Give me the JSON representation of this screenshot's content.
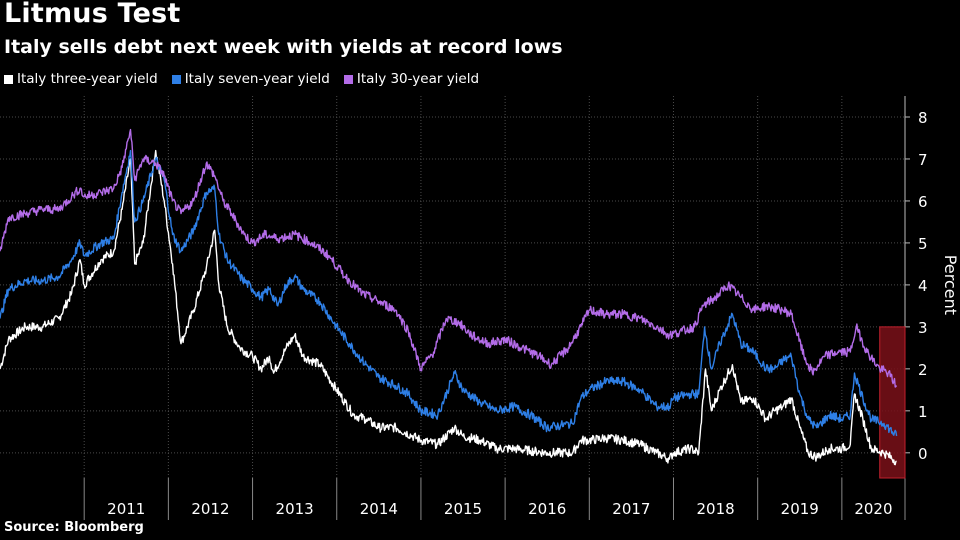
{
  "chart_data": {
    "type": "line",
    "title": "Litmus Test",
    "subtitle": "Italy sells debt next week with yields at record lows",
    "ylabel": "Percent",
    "ylim": [
      -0.6,
      8.5
    ],
    "yticks": [
      0,
      1,
      2,
      3,
      4,
      5,
      6,
      7,
      8
    ],
    "xlim": [
      2010.0,
      2020.75
    ],
    "xticks": [
      "2011",
      "2012",
      "2013",
      "2014",
      "2015",
      "2016",
      "2017",
      "2018",
      "2019",
      "2020"
    ],
    "grid": true,
    "legend_position": "top-left",
    "highlight": {
      "x0": 2020.45,
      "x1": 2020.75,
      "y0": -0.6,
      "y1": 3.0,
      "color": "#7a1019"
    },
    "series": [
      {
        "name": "Italy three-year yield",
        "color": "#ffffff",
        "points": [
          [
            2010.0,
            2.0
          ],
          [
            2010.1,
            2.7
          ],
          [
            2010.3,
            3.0
          ],
          [
            2010.5,
            3.0
          ],
          [
            2010.7,
            3.2
          ],
          [
            2010.85,
            3.8
          ],
          [
            2010.95,
            4.6
          ],
          [
            2011.0,
            4.0
          ],
          [
            2011.2,
            4.6
          ],
          [
            2011.35,
            4.8
          ],
          [
            2011.45,
            5.8
          ],
          [
            2011.55,
            7.0
          ],
          [
            2011.6,
            4.5
          ],
          [
            2011.7,
            5.0
          ],
          [
            2011.85,
            7.2
          ],
          [
            2011.95,
            6.0
          ],
          [
            2012.05,
            4.5
          ],
          [
            2012.15,
            2.6
          ],
          [
            2012.3,
            3.4
          ],
          [
            2012.45,
            4.4
          ],
          [
            2012.55,
            5.3
          ],
          [
            2012.6,
            4.0
          ],
          [
            2012.7,
            3.0
          ],
          [
            2012.85,
            2.5
          ],
          [
            2013.0,
            2.3
          ],
          [
            2013.1,
            2.0
          ],
          [
            2013.2,
            2.3
          ],
          [
            2013.25,
            1.9
          ],
          [
            2013.4,
            2.5
          ],
          [
            2013.5,
            2.8
          ],
          [
            2013.6,
            2.3
          ],
          [
            2013.8,
            2.1
          ],
          [
            2014.0,
            1.5
          ],
          [
            2014.1,
            1.2
          ],
          [
            2014.2,
            0.9
          ],
          [
            2014.35,
            0.8
          ],
          [
            2014.5,
            0.6
          ],
          [
            2014.7,
            0.6
          ],
          [
            2014.9,
            0.4
          ],
          [
            2015.0,
            0.3
          ],
          [
            2015.2,
            0.2
          ],
          [
            2015.4,
            0.6
          ],
          [
            2015.5,
            0.4
          ],
          [
            2015.7,
            0.3
          ],
          [
            2015.9,
            0.1
          ],
          [
            2016.1,
            0.1
          ],
          [
            2016.3,
            0.05
          ],
          [
            2016.5,
            0.0
          ],
          [
            2016.8,
            0.0
          ],
          [
            2016.9,
            0.3
          ],
          [
            2017.0,
            0.3
          ],
          [
            2017.2,
            0.35
          ],
          [
            2017.4,
            0.3
          ],
          [
            2017.6,
            0.2
          ],
          [
            2017.8,
            0.0
          ],
          [
            2017.95,
            -0.15
          ],
          [
            2018.0,
            0.0
          ],
          [
            2018.2,
            0.1
          ],
          [
            2018.3,
            0.0
          ],
          [
            2018.38,
            2.0
          ],
          [
            2018.45,
            1.0
          ],
          [
            2018.55,
            1.5
          ],
          [
            2018.7,
            2.1
          ],
          [
            2018.8,
            1.2
          ],
          [
            2018.95,
            1.3
          ],
          [
            2019.1,
            0.8
          ],
          [
            2019.2,
            1.0
          ],
          [
            2019.3,
            1.1
          ],
          [
            2019.4,
            1.3
          ],
          [
            2019.5,
            0.6
          ],
          [
            2019.6,
            0.0
          ],
          [
            2019.7,
            -0.1
          ],
          [
            2019.85,
            0.1
          ],
          [
            2020.0,
            0.1
          ],
          [
            2020.1,
            0.2
          ],
          [
            2020.15,
            1.4
          ],
          [
            2020.25,
            0.8
          ],
          [
            2020.35,
            0.1
          ],
          [
            2020.5,
            0.0
          ],
          [
            2020.65,
            -0.2
          ]
        ]
      },
      {
        "name": "Italy seven-year yield",
        "color": "#2e7fe6",
        "points": [
          [
            2010.0,
            3.2
          ],
          [
            2010.1,
            3.9
          ],
          [
            2010.3,
            4.1
          ],
          [
            2010.5,
            4.1
          ],
          [
            2010.7,
            4.2
          ],
          [
            2010.85,
            4.6
          ],
          [
            2010.95,
            5.0
          ],
          [
            2011.0,
            4.7
          ],
          [
            2011.2,
            5.0
          ],
          [
            2011.35,
            5.1
          ],
          [
            2011.45,
            6.2
          ],
          [
            2011.55,
            7.2
          ],
          [
            2011.6,
            5.5
          ],
          [
            2011.7,
            6.0
          ],
          [
            2011.85,
            7.0
          ],
          [
            2011.95,
            6.5
          ],
          [
            2012.05,
            5.2
          ],
          [
            2012.15,
            4.8
          ],
          [
            2012.3,
            5.3
          ],
          [
            2012.45,
            6.2
          ],
          [
            2012.55,
            6.3
          ],
          [
            2012.6,
            5.2
          ],
          [
            2012.7,
            4.6
          ],
          [
            2012.85,
            4.2
          ],
          [
            2013.0,
            3.9
          ],
          [
            2013.1,
            3.7
          ],
          [
            2013.2,
            3.9
          ],
          [
            2013.3,
            3.5
          ],
          [
            2013.4,
            4.0
          ],
          [
            2013.5,
            4.2
          ],
          [
            2013.6,
            3.9
          ],
          [
            2013.8,
            3.6
          ],
          [
            2014.0,
            3.0
          ],
          [
            2014.15,
            2.6
          ],
          [
            2014.3,
            2.2
          ],
          [
            2014.5,
            1.8
          ],
          [
            2014.7,
            1.6
          ],
          [
            2014.85,
            1.4
          ],
          [
            2015.0,
            1.0
          ],
          [
            2015.2,
            0.9
          ],
          [
            2015.4,
            1.9
          ],
          [
            2015.5,
            1.5
          ],
          [
            2015.7,
            1.2
          ],
          [
            2015.9,
            1.0
          ],
          [
            2016.1,
            1.1
          ],
          [
            2016.3,
            0.9
          ],
          [
            2016.5,
            0.6
          ],
          [
            2016.8,
            0.7
          ],
          [
            2016.9,
            1.3
          ],
          [
            2017.0,
            1.5
          ],
          [
            2017.2,
            1.7
          ],
          [
            2017.4,
            1.7
          ],
          [
            2017.6,
            1.5
          ],
          [
            2017.8,
            1.1
          ],
          [
            2017.95,
            1.1
          ],
          [
            2018.0,
            1.3
          ],
          [
            2018.2,
            1.4
          ],
          [
            2018.3,
            1.4
          ],
          [
            2018.37,
            3.0
          ],
          [
            2018.45,
            2.0
          ],
          [
            2018.55,
            2.6
          ],
          [
            2018.7,
            3.3
          ],
          [
            2018.8,
            2.6
          ],
          [
            2018.95,
            2.4
          ],
          [
            2019.1,
            2.0
          ],
          [
            2019.2,
            2.0
          ],
          [
            2019.3,
            2.2
          ],
          [
            2019.4,
            2.3
          ],
          [
            2019.5,
            1.4
          ],
          [
            2019.6,
            0.8
          ],
          [
            2019.7,
            0.6
          ],
          [
            2019.85,
            0.9
          ],
          [
            2020.0,
            0.8
          ],
          [
            2020.1,
            0.9
          ],
          [
            2020.15,
            1.9
          ],
          [
            2020.25,
            1.3
          ],
          [
            2020.35,
            0.8
          ],
          [
            2020.5,
            0.7
          ],
          [
            2020.65,
            0.4
          ]
        ]
      },
      {
        "name": "Italy 30-year yield",
        "color": "#b36ce8",
        "points": [
          [
            2010.0,
            4.8
          ],
          [
            2010.1,
            5.6
          ],
          [
            2010.3,
            5.7
          ],
          [
            2010.5,
            5.8
          ],
          [
            2010.7,
            5.8
          ],
          [
            2010.85,
            6.1
          ],
          [
            2010.95,
            6.3
          ],
          [
            2011.0,
            6.1
          ],
          [
            2011.2,
            6.2
          ],
          [
            2011.35,
            6.3
          ],
          [
            2011.45,
            6.8
          ],
          [
            2011.55,
            7.7
          ],
          [
            2011.6,
            6.5
          ],
          [
            2011.7,
            7.0
          ],
          [
            2011.85,
            6.9
          ],
          [
            2011.95,
            6.6
          ],
          [
            2012.05,
            6.0
          ],
          [
            2012.15,
            5.7
          ],
          [
            2012.3,
            6.0
          ],
          [
            2012.45,
            6.9
          ],
          [
            2012.55,
            6.6
          ],
          [
            2012.65,
            6.0
          ],
          [
            2012.75,
            5.7
          ],
          [
            2012.9,
            5.2
          ],
          [
            2013.0,
            5.0
          ],
          [
            2013.15,
            5.2
          ],
          [
            2013.3,
            5.1
          ],
          [
            2013.5,
            5.2
          ],
          [
            2013.7,
            5.0
          ],
          [
            2013.9,
            4.7
          ],
          [
            2014.1,
            4.2
          ],
          [
            2014.3,
            3.8
          ],
          [
            2014.5,
            3.6
          ],
          [
            2014.7,
            3.4
          ],
          [
            2014.85,
            2.9
          ],
          [
            2015.0,
            2.0
          ],
          [
            2015.15,
            2.4
          ],
          [
            2015.3,
            3.2
          ],
          [
            2015.45,
            3.1
          ],
          [
            2015.6,
            2.8
          ],
          [
            2015.8,
            2.6
          ],
          [
            2016.0,
            2.7
          ],
          [
            2016.2,
            2.5
          ],
          [
            2016.4,
            2.3
          ],
          [
            2016.55,
            2.1
          ],
          [
            2016.75,
            2.5
          ],
          [
            2016.9,
            3.0
          ],
          [
            2017.0,
            3.4
          ],
          [
            2017.2,
            3.3
          ],
          [
            2017.4,
            3.3
          ],
          [
            2017.6,
            3.2
          ],
          [
            2017.8,
            3.0
          ],
          [
            2017.95,
            2.8
          ],
          [
            2018.1,
            2.9
          ],
          [
            2018.25,
            3.0
          ],
          [
            2018.35,
            3.5
          ],
          [
            2018.5,
            3.7
          ],
          [
            2018.65,
            4.0
          ],
          [
            2018.8,
            3.7
          ],
          [
            2018.95,
            3.4
          ],
          [
            2019.1,
            3.5
          ],
          [
            2019.3,
            3.4
          ],
          [
            2019.4,
            3.3
          ],
          [
            2019.55,
            2.3
          ],
          [
            2019.65,
            1.9
          ],
          [
            2019.8,
            2.3
          ],
          [
            2019.95,
            2.4
          ],
          [
            2020.1,
            2.4
          ],
          [
            2020.17,
            3.0
          ],
          [
            2020.3,
            2.4
          ],
          [
            2020.45,
            2.0
          ],
          [
            2020.55,
            1.9
          ],
          [
            2020.65,
            1.6
          ]
        ]
      }
    ]
  }
}
